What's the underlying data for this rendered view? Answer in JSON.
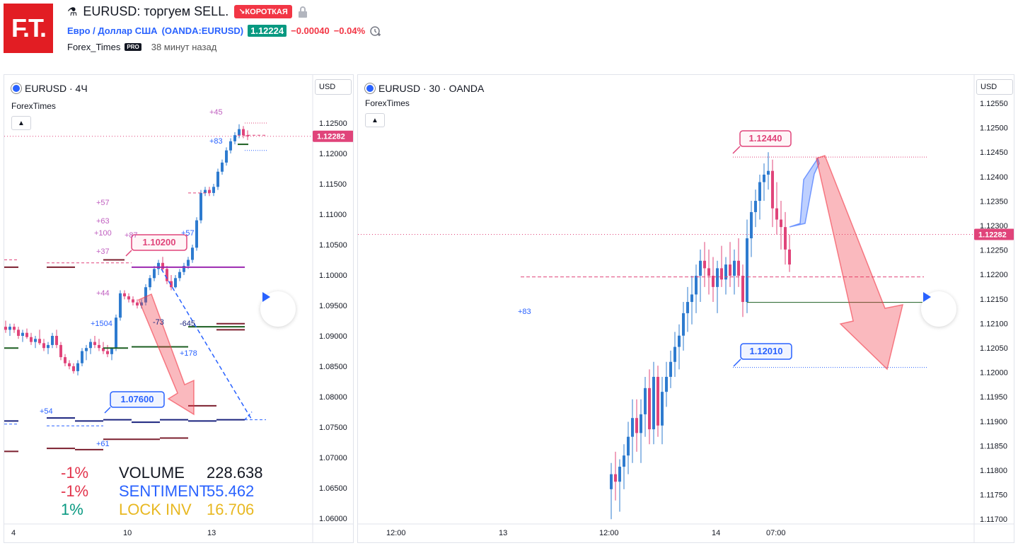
{
  "header": {
    "logo_text": "F.T.",
    "title": "EURUSD: торгуем SELL.",
    "badge": "↘КОРОТКАЯ",
    "symbol_full": "Евро / Доллар США",
    "symbol_code": "(OANDA:EURUSD)",
    "price": "1.12224",
    "change": "−0.00040",
    "change_pct": "−0.04%",
    "author": "Forex_Times",
    "pro": "PRO",
    "time_ago": "38 минут назад"
  },
  "left_chart": {
    "title": "EURUSD · 4Ч",
    "author": "ForexTimes",
    "currency": "USD",
    "current_price": "1.12282",
    "y_ticks": [
      "1.12500",
      "1.12000",
      "1.11500",
      "1.11000",
      "1.10500",
      "1.10000",
      "1.09500",
      "1.09000",
      "1.08500",
      "1.08000",
      "1.07500",
      "1.07000",
      "1.06500",
      "1.06000"
    ],
    "x_ticks": [
      "4",
      "10",
      "13"
    ],
    "label_high": "1.10200",
    "label_low": "1.07600",
    "annotations": [
      "+45",
      "+83",
      "+57",
      "+63",
      "+100",
      "+87",
      "+57",
      "+37",
      "+44",
      "+1504",
      "-73",
      "-645",
      "+178",
      "+54",
      "+61"
    ],
    "stats": [
      {
        "pct": "-1%",
        "label": "VOLUME",
        "value": "228.638",
        "color": "#e2334b"
      },
      {
        "pct": "-1%",
        "label": "SENTIMENT",
        "value": "55.462",
        "color": "#2962ff"
      },
      {
        "pct": "1%",
        "label": "LOCK INV",
        "value": "16.706",
        "color": "#e8b821"
      }
    ]
  },
  "right_chart": {
    "title": "EURUSD · 30 · OANDA",
    "author": "ForexTimes",
    "currency": "USD",
    "current_price": "1.12282",
    "y_ticks": [
      "1.12550",
      "1.12500",
      "1.12450",
      "1.12400",
      "1.12350",
      "1.12300",
      "1.12250",
      "1.12200",
      "1.12150",
      "1.12100",
      "1.12050",
      "1.12000",
      "1.11950",
      "1.11900",
      "1.11850",
      "1.11800",
      "1.11750",
      "1.11700"
    ],
    "x_ticks": [
      "12:00",
      "13",
      "12:00",
      "14",
      "07:00"
    ],
    "label_high": "1.12440",
    "label_low": "1.12010",
    "annotation": "+83"
  },
  "colors": {
    "up": "#2e7bcf",
    "down": "#e0447a",
    "accent": "#2962ff",
    "red": "#f23645",
    "green": "#089981"
  }
}
